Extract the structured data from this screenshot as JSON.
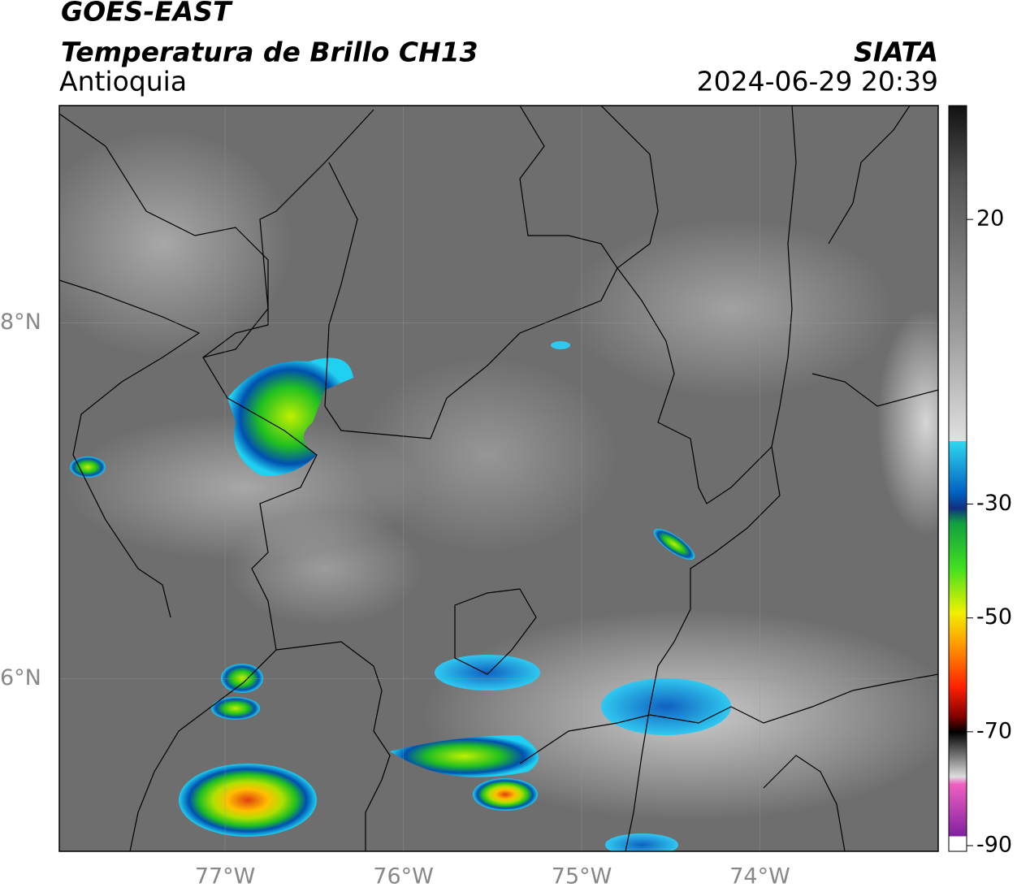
{
  "header": {
    "title": "GOES-EAST",
    "subtitle": "Temperatura de Brillo CH13",
    "region": "Antioquia",
    "agency": "SIATA",
    "datetime": "2024-06-29 20:39"
  },
  "map": {
    "lonlim": [
      -77.93,
      -73.0
    ],
    "latlim": [
      5.03,
      9.22
    ],
    "lon_ticks": [
      {
        "value": -77,
        "label": "77°W"
      },
      {
        "value": -76,
        "label": "76°W"
      },
      {
        "value": -75,
        "label": "75°W"
      },
      {
        "value": -74,
        "label": "74°W"
      }
    ],
    "lat_ticks": [
      {
        "value": 8,
        "label": "8°N"
      },
      {
        "value": 6,
        "label": "6°N"
      }
    ]
  },
  "colorbar": {
    "clim": [
      -91,
      40
    ],
    "ticks": [
      20,
      -30,
      -50,
      -70,
      -90
    ]
  }
}
